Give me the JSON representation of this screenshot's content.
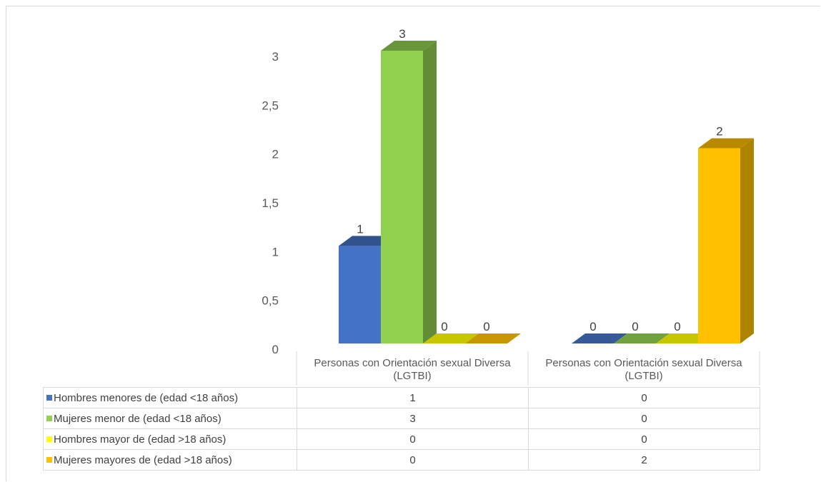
{
  "chart_data": {
    "type": "bar",
    "title": "",
    "xlabel": "",
    "ylabel": "",
    "ylim": [
      0,
      3
    ],
    "yticks": [
      "0",
      "0,5",
      "1",
      "1,5",
      "2",
      "2,5",
      "3"
    ],
    "ytick_values": [
      0,
      0.5,
      1,
      1.5,
      2,
      2.5,
      3
    ],
    "categories": [
      "Personas con Orientación sexual Diversa (LGTBI)",
      "Personas con Orientación sexual Diversa (LGTBI)"
    ],
    "series": [
      {
        "name": "Hombres menores de (edad <18 años)",
        "values": [
          1,
          0
        ],
        "value_labels": [
          "1",
          "0"
        ]
      },
      {
        "name": "Mujeres menor de (edad <18 años)",
        "values": [
          3,
          0
        ],
        "value_labels": [
          "3",
          "0"
        ]
      },
      {
        "name": "Hombres mayor de (edad >18 años)",
        "values": [
          0,
          0
        ],
        "value_labels": [
          "0",
          "0"
        ]
      },
      {
        "name": "Mujeres mayores de (edad >18 años)",
        "values": [
          0,
          2
        ],
        "value_labels": [
          "0",
          "2"
        ]
      }
    ],
    "colors": [
      "#4472c4",
      "#92d050",
      "#ffff00",
      "#ffc000"
    ],
    "data_table": true,
    "grid": false
  }
}
